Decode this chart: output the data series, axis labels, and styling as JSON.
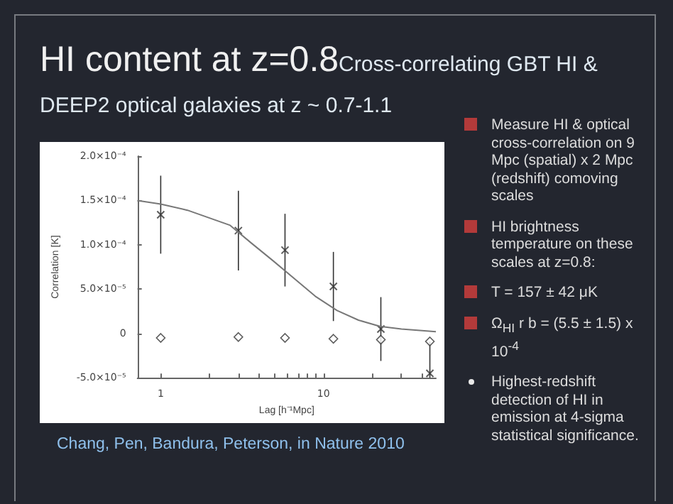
{
  "chart_data": {
    "type": "scatter",
    "title": "HI content at z=0.8",
    "subtitle": "Cross-correlating GBT HI & DEEP2 optical galaxies at z ~ 0.7-1.1",
    "xlabel": "Lag [h⁻¹Mpc]",
    "ylabel": "Correlation [K]",
    "log": "x",
    "xlim": [
      0.72,
      49
    ],
    "xticks": [
      1,
      {
        "value": 2,
        "label": null
      },
      {
        "value": 3,
        "label": null
      },
      {
        "value": 4,
        "label": null
      },
      {
        "value": 5,
        "label": null
      },
      {
        "value": 6,
        "label": null
      },
      {
        "value": 7,
        "label": null
      },
      {
        "value": 8,
        "label": null
      },
      {
        "value": 9,
        "label": null
      },
      10,
      {
        "value": 20,
        "label": null
      },
      {
        "value": 30,
        "label": null
      },
      {
        "value": 40,
        "label": null
      }
    ],
    "ylim": [
      -5e-05,
      0.0002
    ],
    "yticks": [
      {
        "value": -5e-05,
        "label": "-5.0×10⁻⁵"
      },
      {
        "value": 0,
        "label": "0"
      },
      {
        "value": 5e-05,
        "label": "5.0×10⁻⁵"
      },
      {
        "value": 0.0001,
        "label": "1.0×10⁻⁴"
      },
      {
        "value": 0.00015,
        "label": "1.5×10⁻⁴"
      },
      {
        "value": 0.0002,
        "label": "2.0×10⁻⁴"
      }
    ],
    "annotations": [
      "Measure HI & optical cross-correlation on 9 Mpc (spatial) x 2 Mpc (redshift) comoving scales",
      "HI brightness temperature on these scales at z=0.8:",
      "T = 157 ± 42 μK",
      "Ω$_{HI}$ r b = (5.5 ± 1.5) x 10$^{-4}$",
      "Highest-redshift detection of HI in emission at 4-sigma statistical significance.",
      "Chang, Pen, Bandura, Peterson, in Nature 2010"
    ],
    "series": [
      {
        "type": "line",
        "color": "#777777",
        "marker": "none",
        "x": [
          0.72,
          1,
          1.46,
          2.67,
          3.6,
          4.9,
          6.6,
          8.9,
          12.1,
          16.4,
          22.2,
          30.1,
          49
        ],
        "values": [
          0.00015,
          0.000146,
          0.000139,
          0.000122,
          0.000102,
          8.2e-05,
          6.2e-05,
          4.2e-05,
          2.6e-05,
          1.5e-05,
          8e-06,
          5e-06,
          2e-06
        ]
      },
      {
        "color": "#333333",
        "marker": "cross",
        "x": [
          1,
          3,
          5.8,
          11.5,
          22.5,
          45
        ],
        "values": [
          0.000134,
          0.000116,
          9.4e-05,
          5.3e-05,
          5e-06,
          -4.5e-05
        ],
        "errors": [
          4.4e-05,
          4.5e-05,
          4.1e-05,
          3.9e-05,
          3.6e-05,
          [
            -5e-05,
            -9e-06
          ]
        ]
      },
      {
        "color": "#333333",
        "marker": "diamond",
        "x": [
          1,
          3,
          5.8,
          11.5,
          22.5,
          45
        ],
        "values": [
          -5e-06,
          -4e-06,
          -5e-06,
          -6e-06,
          -7e-06,
          -9e-06
        ]
      }
    ]
  }
}
